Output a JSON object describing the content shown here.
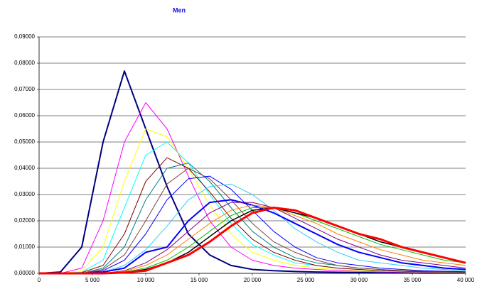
{
  "chart_data": {
    "type": "line",
    "title": "Men",
    "x": [
      0,
      2000,
      4000,
      6000,
      8000,
      10000,
      12000,
      14000,
      16000,
      18000,
      20000,
      22000,
      24000,
      26000,
      28000,
      30000,
      32000,
      34000,
      36000,
      38000,
      40000
    ],
    "series": [
      {
        "color": "#000080",
        "width": 2,
        "values": [
          0,
          0.0005,
          0.01,
          0.05,
          0.077,
          0.055,
          0.033,
          0.015,
          0.007,
          0.003,
          0.0015,
          0.001,
          0.0007,
          0.0005,
          0.0004,
          0.0003,
          0.0002,
          0.0002,
          0.0001,
          0.0001,
          0.0001
        ]
      },
      {
        "color": "#ff00ff",
        "width": 1,
        "values": [
          0,
          0,
          0.002,
          0.02,
          0.05,
          0.065,
          0.055,
          0.037,
          0.02,
          0.01,
          0.005,
          0.003,
          0.002,
          0.0015,
          0.001,
          0.0008,
          0.0006,
          0.0005,
          0.0004,
          0.0003,
          0.0003
        ]
      },
      {
        "color": "#ffff00",
        "width": 1,
        "values": [
          0,
          0,
          0.001,
          0.01,
          0.035,
          0.055,
          0.052,
          0.04,
          0.026,
          0.015,
          0.008,
          0.005,
          0.003,
          0.002,
          0.0015,
          0.001,
          0.0008,
          0.0006,
          0.0005,
          0.0004,
          0.0003
        ]
      },
      {
        "color": "#00ffff",
        "width": 1,
        "values": [
          0,
          0,
          0.0005,
          0.005,
          0.025,
          0.045,
          0.05,
          0.042,
          0.03,
          0.019,
          0.011,
          0.007,
          0.004,
          0.003,
          0.002,
          0.0015,
          0.001,
          0.0008,
          0.0006,
          0.0005,
          0.0004
        ]
      },
      {
        "color": "#800000",
        "width": 1,
        "values": [
          0,
          0,
          0.0003,
          0.003,
          0.015,
          0.035,
          0.044,
          0.04,
          0.031,
          0.021,
          0.013,
          0.008,
          0.005,
          0.003,
          0.002,
          0.0015,
          0.001,
          0.0008,
          0.0006,
          0.0005,
          0.0004
        ]
      },
      {
        "color": "#008080",
        "width": 1,
        "values": [
          0,
          0,
          0,
          0.002,
          0.01,
          0.028,
          0.04,
          0.042,
          0.035,
          0.025,
          0.016,
          0.01,
          0.006,
          0.004,
          0.003,
          0.002,
          0.0015,
          0.001,
          0.0008,
          0.0006,
          0.0005
        ]
      },
      {
        "color": "#804040",
        "width": 1,
        "values": [
          0,
          0,
          0,
          0.0015,
          0.007,
          0.02,
          0.034,
          0.04,
          0.036,
          0.028,
          0.019,
          0.012,
          0.008,
          0.005,
          0.003,
          0.002,
          0.0015,
          0.001,
          0.0008,
          0.0006,
          0.0005
        ]
      },
      {
        "color": "#0000ff",
        "width": 1,
        "values": [
          0,
          0,
          0,
          0.001,
          0.005,
          0.015,
          0.028,
          0.036,
          0.037,
          0.032,
          0.024,
          0.016,
          0.01,
          0.006,
          0.004,
          0.003,
          0.002,
          0.0015,
          0.001,
          0.0008,
          0.0006
        ]
      },
      {
        "color": "#33ccff",
        "width": 1,
        "values": [
          0,
          0,
          0,
          0.0005,
          0.003,
          0.009,
          0.018,
          0.028,
          0.033,
          0.034,
          0.03,
          0.024,
          0.017,
          0.012,
          0.008,
          0.005,
          0.004,
          0.003,
          0.002,
          0.0015,
          0.001
        ]
      },
      {
        "color": "#0000ff",
        "width": 2,
        "values": [
          0,
          0,
          0,
          0.0005,
          0.002,
          0.008,
          0.01,
          0.02,
          0.027,
          0.028,
          0.026,
          0.023,
          0.019,
          0.015,
          0.011,
          0.008,
          0.006,
          0.004,
          0.003,
          0.002,
          0.0015
        ]
      },
      {
        "color": "#800080",
        "width": 1,
        "values": [
          0,
          0,
          0,
          0,
          0.001,
          0.004,
          0.009,
          0.016,
          0.023,
          0.027,
          0.027,
          0.025,
          0.021,
          0.017,
          0.013,
          0.01,
          0.007,
          0.005,
          0.004,
          0.003,
          0.002
        ]
      },
      {
        "color": "#ff8000",
        "width": 1,
        "values": [
          0,
          0,
          0,
          0,
          0.0008,
          0.003,
          0.007,
          0.013,
          0.019,
          0.024,
          0.026,
          0.025,
          0.022,
          0.019,
          0.015,
          0.012,
          0.009,
          0.007,
          0.005,
          0.004,
          0.003
        ]
      },
      {
        "color": "#00c000",
        "width": 1,
        "values": [
          0,
          0,
          0,
          0,
          0.0005,
          0.002,
          0.005,
          0.01,
          0.016,
          0.022,
          0.025,
          0.025,
          0.023,
          0.02,
          0.017,
          0.014,
          0.011,
          0.009,
          0.007,
          0.005,
          0.004
        ]
      },
      {
        "color": "#000000",
        "width": 1.5,
        "values": [
          0,
          0,
          0,
          0,
          0.0003,
          0.0015,
          0.004,
          0.008,
          0.014,
          0.02,
          0.024,
          0.025,
          0.023,
          0.021,
          0.018,
          0.015,
          0.012,
          0.01,
          0.008,
          0.006,
          0.004
        ]
      },
      {
        "color": "#ff0000",
        "width": 3,
        "values": [
          0,
          0,
          0,
          0,
          0.0003,
          0.001,
          0.004,
          0.007,
          0.012,
          0.018,
          0.023,
          0.025,
          0.024,
          0.021,
          0.018,
          0.015,
          0.013,
          0.01,
          0.008,
          0.006,
          0.004
        ]
      }
    ],
    "xlim": [
      0,
      40000
    ],
    "xticks": [
      0,
      {
        "value": 5000,
        "label": "5 000"
      },
      {
        "value": 10000,
        "label": "10 000"
      },
      {
        "value": 15000,
        "label": "15 000"
      },
      {
        "value": 20000,
        "label": "20 000"
      },
      {
        "value": 25000,
        "label": "25 000"
      },
      {
        "value": 30000,
        "label": "30 000"
      },
      {
        "value": 35000,
        "label": "35 000"
      },
      {
        "value": 40000,
        "label": "40 000"
      }
    ],
    "ylim": [
      0,
      0.09
    ],
    "yticks": [
      {
        "value": 0,
        "label": "0,00000"
      },
      {
        "value": 0.01,
        "label": "0,01000"
      },
      {
        "value": 0.02,
        "label": "0,02000"
      },
      {
        "value": 0.03,
        "label": "0,03000"
      },
      {
        "value": 0.04,
        "label": "0,04000"
      },
      {
        "value": 0.05,
        "label": "0,05000"
      },
      {
        "value": 0.06,
        "label": "0,06000"
      },
      {
        "value": 0.07,
        "label": "0,07000"
      },
      {
        "value": 0.08,
        "label": "0,08000"
      },
      {
        "value": 0.09,
        "label": "0,09000"
      }
    ],
    "grid": true
  }
}
